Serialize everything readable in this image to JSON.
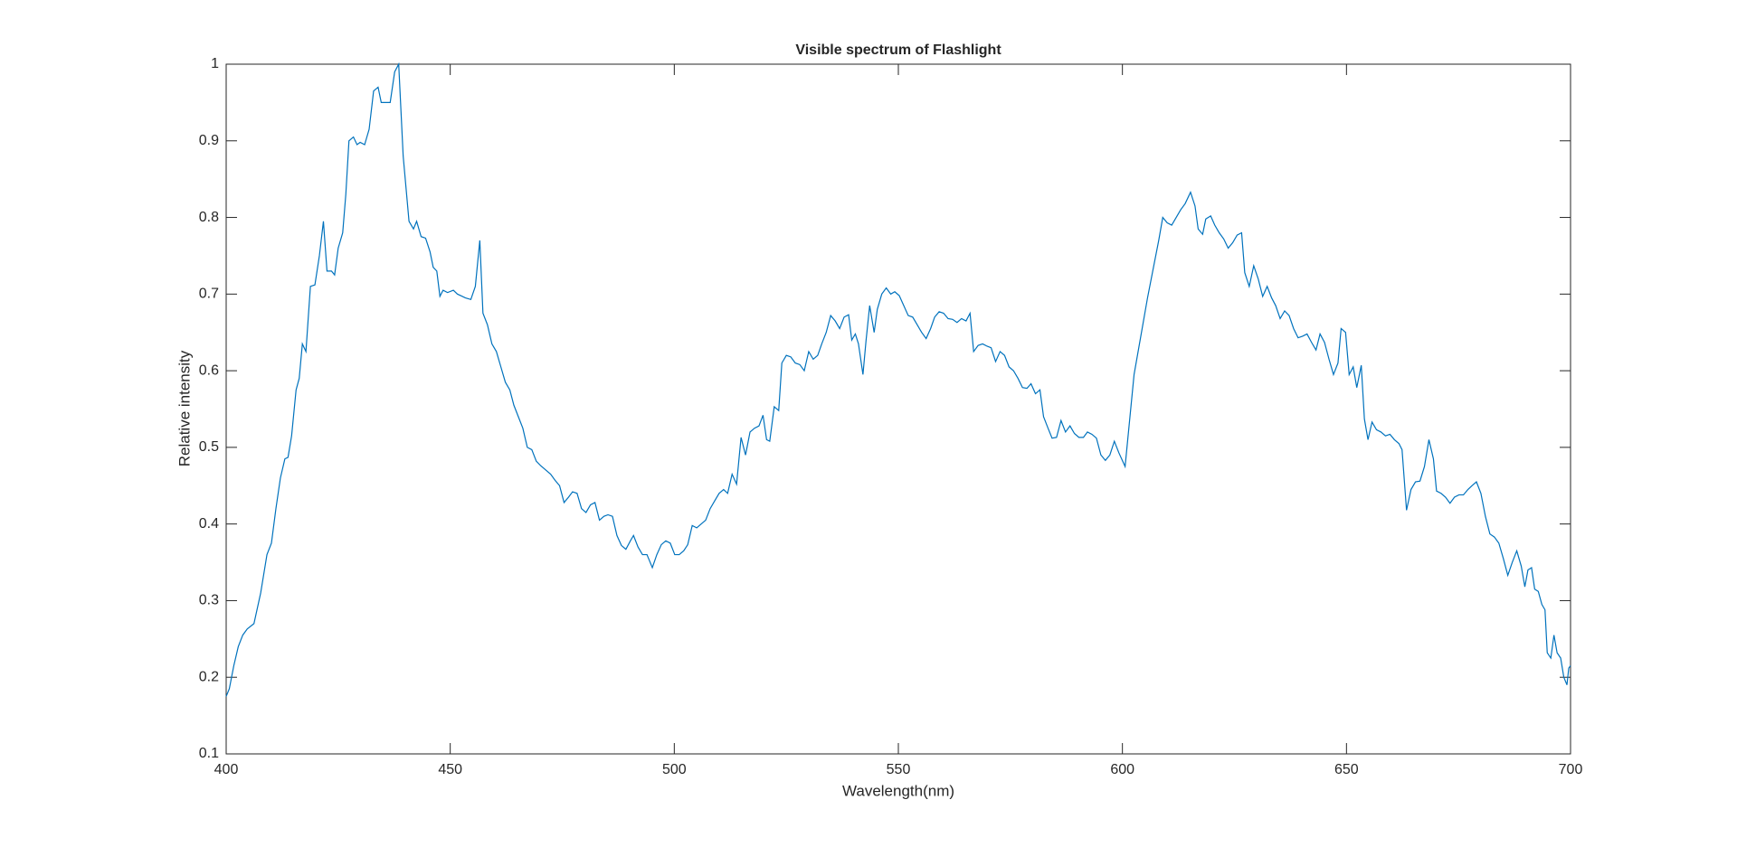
{
  "chart_data": {
    "type": "line",
    "title": "Visible spectrum of Flashlight",
    "x_label": "Wavelength(nm)",
    "y_label": "Relative intensity",
    "xlim": [
      400,
      700
    ],
    "ylim": [
      0.1,
      1
    ],
    "xticks": [
      400,
      450,
      500,
      550,
      600,
      650,
      700
    ],
    "yticks": [
      0.1,
      0.2,
      0.3,
      0.4,
      0.5,
      0.6,
      0.7,
      0.8,
      0.9,
      1
    ],
    "grid": false,
    "series": [
      {
        "color": "#0072bd",
        "x": [
          400,
          400.7,
          401.7,
          402.7,
          403.7,
          404.7,
          406.2,
          407.7,
          409.1,
          410.1,
          411.1,
          412.1,
          413.1,
          413.8,
          414.6,
          415.6,
          416.3,
          417,
          417.8,
          418.8,
          419.8,
          420.8,
          421.7,
          422.5,
          423.5,
          424.2,
          425,
          426,
          426.7,
          427.4,
          428.4,
          429.2,
          429.9,
          430.9,
          431.9,
          432.9,
          433.9,
          434.6,
          436.6,
          437.6,
          438.5,
          439.5,
          440.8,
          441.8,
          442.5,
          443.5,
          444.5,
          445.5,
          446.2,
          447,
          447.7,
          448.4,
          449.4,
          450.7,
          451.6,
          453.4,
          454.6,
          455.6,
          456.6,
          457.3,
          458.3,
          459.3,
          460.3,
          461.3,
          462.3,
          463.3,
          464.2,
          465.2,
          466.2,
          467.2,
          468.2,
          469.2,
          470.2,
          471.4,
          472.4,
          473.4,
          474.4,
          475.4,
          476.4,
          477.3,
          478.3,
          479.3,
          480.3,
          481.3,
          482.3,
          483.3,
          484.3,
          485.2,
          486.2,
          487.2,
          488.2,
          489.2,
          490.2,
          490.9,
          491.9,
          492.9,
          493.9,
          495.1,
          496.1,
          497.1,
          498.1,
          499.1,
          500.1,
          501.1,
          502.1,
          503,
          504,
          505,
          506,
          507,
          508,
          509,
          510,
          511,
          511.9,
          512.9,
          513.9,
          514.9,
          515.9,
          516.9,
          517.9,
          518.9,
          519.8,
          520.6,
          521.3,
          522.3,
          523.3,
          524,
          525,
          526,
          527,
          528,
          529,
          530,
          531,
          532,
          532.9,
          533.9,
          534.9,
          535.9,
          536.9,
          537.9,
          538.9,
          539.6,
          540.4,
          541.1,
          542.1,
          542.8,
          543.6,
          544.6,
          545.3,
          546.3,
          547.3,
          548.3,
          549.2,
          550.2,
          551.2,
          552.2,
          553.2,
          554.2,
          555.2,
          556.2,
          557.2,
          558.1,
          559.1,
          560.1,
          561.1,
          562.1,
          563.1,
          564.1,
          565.1,
          566,
          566.8,
          567.8,
          568.8,
          569.8,
          570.7,
          571.7,
          572.7,
          573.7,
          574.7,
          575.7,
          576.7,
          577.7,
          578.7,
          579.6,
          580.6,
          581.6,
          582.4,
          583.4,
          584.3,
          585.3,
          586.3,
          587.3,
          588.3,
          589.3,
          590.3,
          591.3,
          592.2,
          593.2,
          594.2,
          595.2,
          596.2,
          597.2,
          598.2,
          599.2,
          600.6,
          602.6,
          604.1,
          605.6,
          607.1,
          608.1,
          609,
          610,
          611,
          612,
          613,
          614,
          615.2,
          616.2,
          616.9,
          617.9,
          618.6,
          619.7,
          620.6,
          621.6,
          622.6,
          623.6,
          624.6,
          625.6,
          626.6,
          627.3,
          628.3,
          629.3,
          630.3,
          631.3,
          632.3,
          633.3,
          634.2,
          635.2,
          636.2,
          637.2,
          638.2,
          639.2,
          640.2,
          641.2,
          642.2,
          643.2,
          644.1,
          645.1,
          646.1,
          647.1,
          648.1,
          648.8,
          649.8,
          650.6,
          651.5,
          652.3,
          653.3,
          654,
          654.8,
          655.7,
          656.7,
          657.7,
          658.7,
          659.7,
          660.7,
          661.7,
          662.4,
          663.4,
          664.4,
          665.4,
          666.4,
          667.4,
          668.4,
          669.4,
          670.1,
          671.1,
          672.1,
          673.1,
          674.1,
          675.1,
          676.1,
          677.1,
          678,
          679,
          680,
          681,
          682,
          683,
          684,
          685,
          686,
          687,
          688,
          689,
          689.8,
          690.5,
          691.3,
          692,
          692.8,
          693.6,
          694.3,
          694.8,
          695.6,
          696.3,
          697,
          697.8,
          698.5,
          699.2,
          699.6,
          700
        ],
        "values": [
          0.175,
          0.185,
          0.215,
          0.24,
          0.255,
          0.263,
          0.27,
          0.31,
          0.36,
          0.375,
          0.42,
          0.46,
          0.485,
          0.487,
          0.515,
          0.575,
          0.59,
          0.635,
          0.625,
          0.71,
          0.712,
          0.75,
          0.795,
          0.73,
          0.73,
          0.725,
          0.76,
          0.78,
          0.83,
          0.9,
          0.905,
          0.895,
          0.898,
          0.895,
          0.915,
          0.965,
          0.97,
          0.95,
          0.95,
          0.99,
          1,
          0.88,
          0.795,
          0.785,
          0.795,
          0.775,
          0.773,
          0.755,
          0.735,
          0.73,
          0.697,
          0.705,
          0.702,
          0.705,
          0.7,
          0.695,
          0.693,
          0.71,
          0.77,
          0.675,
          0.66,
          0.635,
          0.625,
          0.605,
          0.585,
          0.575,
          0.555,
          0.54,
          0.525,
          0.5,
          0.497,
          0.482,
          0.476,
          0.47,
          0.465,
          0.457,
          0.45,
          0.428,
          0.435,
          0.442,
          0.44,
          0.42,
          0.415,
          0.425,
          0.428,
          0.405,
          0.41,
          0.412,
          0.41,
          0.385,
          0.372,
          0.367,
          0.378,
          0.385,
          0.37,
          0.36,
          0.36,
          0.343,
          0.36,
          0.373,
          0.378,
          0.375,
          0.36,
          0.36,
          0.365,
          0.373,
          0.398,
          0.395,
          0.4,
          0.405,
          0.42,
          0.43,
          0.44,
          0.445,
          0.44,
          0.465,
          0.452,
          0.513,
          0.49,
          0.52,
          0.525,
          0.528,
          0.542,
          0.51,
          0.508,
          0.553,
          0.548,
          0.61,
          0.62,
          0.618,
          0.61,
          0.608,
          0.6,
          0.625,
          0.615,
          0.62,
          0.635,
          0.65,
          0.672,
          0.665,
          0.655,
          0.67,
          0.673,
          0.64,
          0.648,
          0.635,
          0.595,
          0.64,
          0.685,
          0.65,
          0.68,
          0.7,
          0.708,
          0.7,
          0.703,
          0.698,
          0.685,
          0.672,
          0.67,
          0.66,
          0.65,
          0.642,
          0.655,
          0.67,
          0.677,
          0.675,
          0.668,
          0.667,
          0.663,
          0.668,
          0.665,
          0.675,
          0.625,
          0.633,
          0.635,
          0.632,
          0.63,
          0.612,
          0.625,
          0.62,
          0.605,
          0.6,
          0.59,
          0.578,
          0.577,
          0.583,
          0.57,
          0.575,
          0.54,
          0.525,
          0.512,
          0.513,
          0.535,
          0.52,
          0.528,
          0.518,
          0.513,
          0.513,
          0.52,
          0.517,
          0.512,
          0.49,
          0.483,
          0.49,
          0.508,
          0.493,
          0.475,
          0.595,
          0.645,
          0.695,
          0.74,
          0.77,
          0.8,
          0.793,
          0.79,
          0.8,
          0.81,
          0.818,
          0.833,
          0.815,
          0.785,
          0.778,
          0.798,
          0.802,
          0.79,
          0.78,
          0.772,
          0.76,
          0.767,
          0.777,
          0.78,
          0.728,
          0.71,
          0.737,
          0.72,
          0.697,
          0.71,
          0.695,
          0.685,
          0.668,
          0.678,
          0.672,
          0.655,
          0.643,
          0.645,
          0.648,
          0.637,
          0.627,
          0.648,
          0.637,
          0.615,
          0.595,
          0.61,
          0.655,
          0.65,
          0.595,
          0.605,
          0.578,
          0.607,
          0.537,
          0.51,
          0.533,
          0.523,
          0.52,
          0.515,
          0.517,
          0.51,
          0.505,
          0.497,
          0.418,
          0.445,
          0.455,
          0.456,
          0.475,
          0.51,
          0.485,
          0.443,
          0.44,
          0.435,
          0.427,
          0.435,
          0.438,
          0.438,
          0.445,
          0.45,
          0.455,
          0.44,
          0.41,
          0.387,
          0.383,
          0.375,
          0.355,
          0.333,
          0.35,
          0.365,
          0.345,
          0.318,
          0.34,
          0.343,
          0.315,
          0.312,
          0.295,
          0.288,
          0.232,
          0.225,
          0.255,
          0.232,
          0.225,
          0.2,
          0.19,
          0.212,
          0.215
        ]
      }
    ]
  }
}
